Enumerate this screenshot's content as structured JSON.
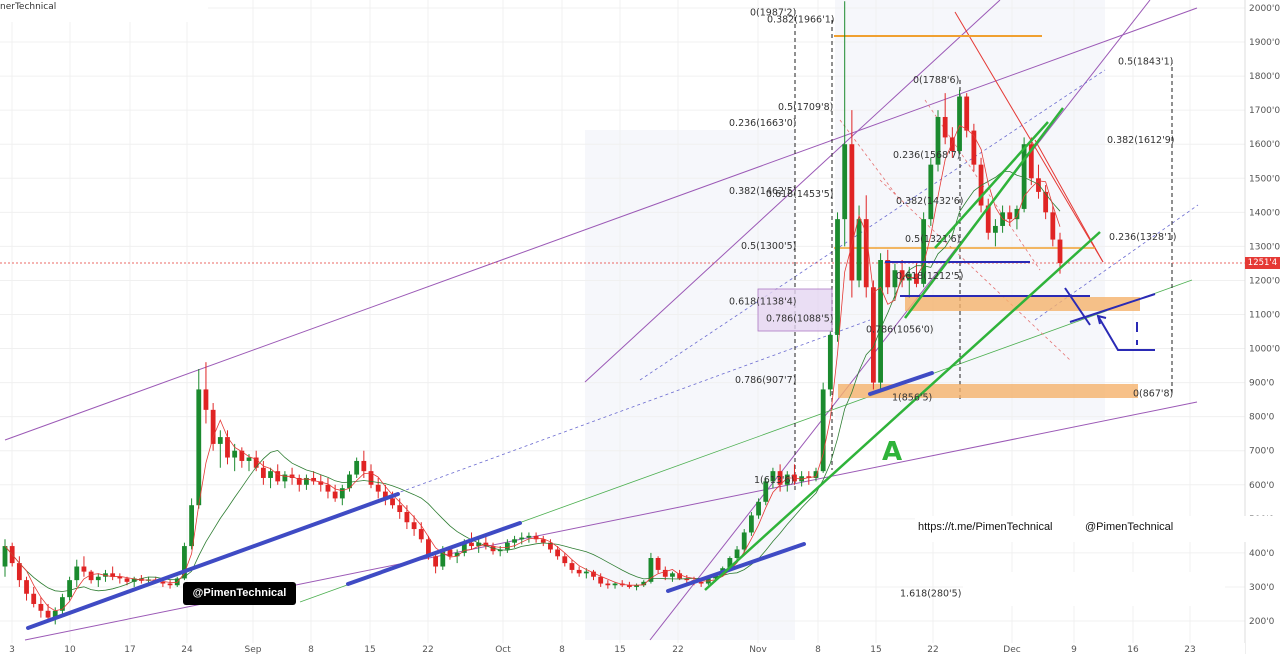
{
  "title": "nerTechnical",
  "watermarks": {
    "left_handle": "@PimenTechnical",
    "link_url": "https://t.me/PimenTechnical",
    "right_handle": "@PimenTechnical"
  },
  "current_price_label": "1251'4",
  "colors": {
    "bull": "#1b8a2e",
    "bear": "#e02424",
    "channel": "#9b59b6",
    "trendline_blue": "#3f4bc4",
    "trendline_green": "#2fb33a",
    "zone_orange": "#f5b26b",
    "fib_red": "#e53935"
  },
  "chart_data": {
    "type": "candlestick",
    "y_axis": {
      "ticks": [
        "2000'0",
        "1900'0",
        "1800'0",
        "1700'0",
        "1600'0",
        "1500'0",
        "1400'0",
        "1300'0",
        "1200'0",
        "1100'0",
        "1000'0",
        "900'0",
        "800'0",
        "700'0",
        "600'0",
        "500'0",
        "400'0",
        "300'0",
        "200'0"
      ],
      "tick_values": [
        2000,
        1900,
        1800,
        1700,
        1600,
        1500,
        1400,
        1300,
        1200,
        1100,
        1000,
        900,
        800,
        700,
        600,
        500,
        400,
        300,
        200
      ],
      "range": [
        180,
        2020
      ]
    },
    "x_axis": {
      "labels": [
        "3",
        "10",
        "17",
        "24",
        "Sep",
        "8",
        "15",
        "22",
        "Oct",
        "8",
        "15",
        "22",
        "Nov",
        "8",
        "15",
        "22",
        "Dec",
        "9",
        "16",
        "23"
      ]
    },
    "fib_levels": [
      {
        "label": "0(1987'2)",
        "price": 1987.2
      },
      {
        "label": "0.382(1966'1)",
        "price": 1966.1
      },
      {
        "label": "0.5(1843'1)",
        "price": 1843.1
      },
      {
        "label": "0(1788'6)",
        "price": 1788.6
      },
      {
        "label": "0.5(1709'8)",
        "price": 1709.8
      },
      {
        "label": "0.236(1663'0)",
        "price": 1663.0
      },
      {
        "label": "0.382(1612'9)",
        "price": 1612.9
      },
      {
        "label": "0.236(1568'7)",
        "price": 1568.7
      },
      {
        "label": "0.382(1462'5)",
        "price": 1462.5
      },
      {
        "label": "0.618(1453'5)",
        "price": 1453.5
      },
      {
        "label": "0.382(1432'6)",
        "price": 1432.6
      },
      {
        "label": "0.236(1328'1)",
        "price": 1328.1
      },
      {
        "label": "0.5(1321'6)",
        "price": 1321.6
      },
      {
        "label": "0.5(1300'5)",
        "price": 1300.5
      },
      {
        "label": "0.618(1212'5)",
        "price": 1212.5
      },
      {
        "label": "0.618(1138'4)",
        "price": 1138.4
      },
      {
        "label": "0.786(1088'5)",
        "price": 1088.5
      },
      {
        "label": "0.786(1056'0)",
        "price": 1056.0
      },
      {
        "label": "0.786(907'7)",
        "price": 907.7
      },
      {
        "label": "0(867'8)",
        "price": 867.8
      },
      {
        "label": "1(856'5)",
        "price": 856.5
      },
      {
        "label": "1(613'6)",
        "price": 613.6
      },
      {
        "label": "1.618(280'5)",
        "price": 280.5
      }
    ],
    "annotations": [
      "A"
    ],
    "candles": [
      [
        360,
        440,
        330,
        420
      ],
      [
        420,
        430,
        360,
        370
      ],
      [
        370,
        390,
        300,
        320
      ],
      [
        320,
        330,
        260,
        280
      ],
      [
        280,
        300,
        240,
        250
      ],
      [
        250,
        270,
        210,
        230
      ],
      [
        230,
        250,
        200,
        210
      ],
      [
        210,
        240,
        190,
        230
      ],
      [
        230,
        280,
        220,
        270
      ],
      [
        270,
        330,
        260,
        320
      ],
      [
        320,
        380,
        300,
        360
      ],
      [
        360,
        390,
        330,
        345
      ],
      [
        345,
        350,
        310,
        320
      ],
      [
        320,
        340,
        300,
        330
      ],
      [
        330,
        350,
        315,
        340
      ],
      [
        340,
        360,
        320,
        330
      ],
      [
        330,
        340,
        310,
        325
      ],
      [
        325,
        330,
        305,
        315
      ],
      [
        315,
        330,
        300,
        325
      ],
      [
        325,
        335,
        310,
        318
      ],
      [
        318,
        330,
        305,
        322
      ],
      [
        322,
        330,
        310,
        315
      ],
      [
        315,
        325,
        300,
        310
      ],
      [
        310,
        320,
        295,
        305
      ],
      [
        305,
        330,
        300,
        325
      ],
      [
        325,
        430,
        320,
        420
      ],
      [
        420,
        560,
        410,
        540
      ],
      [
        540,
        940,
        530,
        880
      ],
      [
        880,
        960,
        780,
        820
      ],
      [
        820,
        840,
        700,
        720
      ],
      [
        720,
        760,
        650,
        740
      ],
      [
        740,
        760,
        660,
        680
      ],
      [
        680,
        720,
        640,
        700
      ],
      [
        700,
        710,
        650,
        670
      ],
      [
        670,
        690,
        640,
        680
      ],
      [
        680,
        700,
        640,
        650
      ],
      [
        650,
        670,
        600,
        620
      ],
      [
        620,
        650,
        590,
        640
      ],
      [
        640,
        660,
        600,
        610
      ],
      [
        610,
        640,
        590,
        630
      ],
      [
        630,
        650,
        600,
        620
      ],
      [
        620,
        630,
        580,
        600
      ],
      [
        600,
        630,
        585,
        620
      ],
      [
        620,
        640,
        600,
        610
      ],
      [
        610,
        630,
        580,
        600
      ],
      [
        600,
        620,
        560,
        580
      ],
      [
        580,
        600,
        550,
        560
      ],
      [
        560,
        600,
        540,
        590
      ],
      [
        590,
        640,
        580,
        630
      ],
      [
        630,
        680,
        620,
        670
      ],
      [
        670,
        700,
        620,
        640
      ],
      [
        640,
        660,
        590,
        600
      ],
      [
        600,
        620,
        560,
        580
      ],
      [
        580,
        600,
        540,
        560
      ],
      [
        560,
        580,
        530,
        540
      ],
      [
        540,
        560,
        500,
        520
      ],
      [
        520,
        540,
        470,
        490
      ],
      [
        490,
        510,
        450,
        470
      ],
      [
        470,
        490,
        430,
        440
      ],
      [
        440,
        450,
        380,
        390
      ],
      [
        390,
        400,
        340,
        360
      ],
      [
        360,
        420,
        350,
        410
      ],
      [
        410,
        420,
        380,
        390
      ],
      [
        390,
        410,
        370,
        400
      ],
      [
        400,
        440,
        390,
        430
      ],
      [
        430,
        460,
        410,
        420
      ],
      [
        420,
        440,
        400,
        430
      ],
      [
        430,
        450,
        410,
        420
      ],
      [
        420,
        430,
        395,
        405
      ],
      [
        405,
        420,
        390,
        410
      ],
      [
        410,
        440,
        400,
        430
      ],
      [
        430,
        450,
        415,
        440
      ],
      [
        440,
        460,
        425,
        445
      ],
      [
        445,
        460,
        430,
        450
      ],
      [
        450,
        460,
        430,
        440
      ],
      [
        440,
        450,
        420,
        430
      ],
      [
        430,
        440,
        400,
        410
      ],
      [
        410,
        420,
        380,
        390
      ],
      [
        390,
        400,
        360,
        370
      ],
      [
        370,
        380,
        340,
        350
      ],
      [
        350,
        360,
        330,
        340
      ],
      [
        340,
        355,
        325,
        345
      ],
      [
        345,
        350,
        320,
        330
      ],
      [
        330,
        340,
        300,
        310
      ],
      [
        310,
        320,
        295,
        305
      ],
      [
        305,
        315,
        295,
        310
      ],
      [
        310,
        320,
        300,
        305
      ],
      [
        305,
        315,
        295,
        300
      ],
      [
        300,
        310,
        290,
        305
      ],
      [
        305,
        320,
        300,
        315
      ],
      [
        315,
        400,
        310,
        385
      ],
      [
        385,
        390,
        340,
        350
      ],
      [
        350,
        360,
        320,
        330
      ],
      [
        330,
        345,
        315,
        340
      ],
      [
        340,
        350,
        320,
        325
      ],
      [
        325,
        335,
        310,
        320
      ],
      [
        320,
        330,
        305,
        315
      ],
      [
        315,
        325,
        300,
        310
      ],
      [
        310,
        330,
        305,
        325
      ],
      [
        325,
        340,
        315,
        335
      ],
      [
        335,
        360,
        330,
        355
      ],
      [
        355,
        390,
        350,
        385
      ],
      [
        385,
        420,
        380,
        410
      ],
      [
        410,
        470,
        400,
        460
      ],
      [
        460,
        520,
        450,
        510
      ],
      [
        510,
        560,
        500,
        550
      ],
      [
        550,
        620,
        540,
        610
      ],
      [
        610,
        650,
        590,
        640
      ],
      [
        640,
        660,
        580,
        600
      ],
      [
        600,
        640,
        580,
        630
      ],
      [
        630,
        660,
        600,
        610
      ],
      [
        610,
        640,
        595,
        625
      ],
      [
        625,
        640,
        600,
        620
      ],
      [
        620,
        650,
        610,
        640
      ],
      [
        640,
        900,
        635,
        880
      ],
      [
        880,
        1050,
        860,
        1040
      ],
      [
        1040,
        1400,
        1020,
        1380
      ],
      [
        1380,
        2020,
        1300,
        1600
      ],
      [
        1600,
        1700,
        1150,
        1200
      ],
      [
        1200,
        1420,
        1180,
        1380
      ],
      [
        1380,
        1450,
        1150,
        1180
      ],
      [
        1180,
        1200,
        880,
        900
      ],
      [
        900,
        1280,
        880,
        1260
      ],
      [
        1260,
        1290,
        1160,
        1180
      ],
      [
        1180,
        1250,
        1140,
        1230
      ],
      [
        1230,
        1260,
        1180,
        1200
      ],
      [
        1200,
        1240,
        1150,
        1220
      ],
      [
        1220,
        1250,
        1180,
        1190
      ],
      [
        1190,
        1400,
        1180,
        1380
      ],
      [
        1380,
        1560,
        1360,
        1540
      ],
      [
        1540,
        1700,
        1520,
        1680
      ],
      [
        1680,
        1750,
        1600,
        1620
      ],
      [
        1620,
        1650,
        1560,
        1580
      ],
      [
        1580,
        1760,
        1570,
        1740
      ],
      [
        1740,
        1750,
        1620,
        1640
      ],
      [
        1640,
        1660,
        1520,
        1540
      ],
      [
        1540,
        1560,
        1400,
        1420
      ],
      [
        1420,
        1440,
        1320,
        1340
      ],
      [
        1340,
        1380,
        1300,
        1360
      ],
      [
        1360,
        1420,
        1340,
        1400
      ],
      [
        1400,
        1420,
        1360,
        1380
      ],
      [
        1380,
        1420,
        1350,
        1410
      ],
      [
        1410,
        1620,
        1400,
        1600
      ],
      [
        1600,
        1620,
        1480,
        1500
      ],
      [
        1500,
        1540,
        1440,
        1460
      ],
      [
        1460,
        1480,
        1380,
        1400
      ],
      [
        1400,
        1420,
        1300,
        1320
      ],
      [
        1320,
        1340,
        1220,
        1251
      ]
    ]
  }
}
